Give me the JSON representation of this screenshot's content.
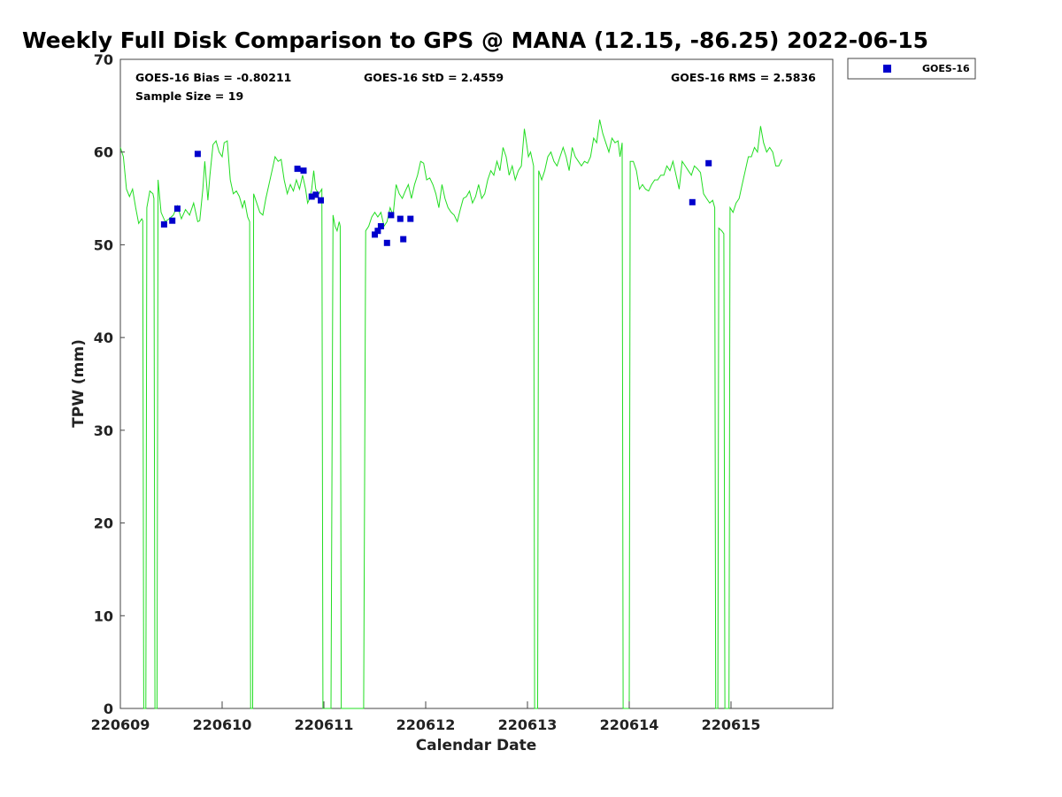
{
  "colors": {
    "gps_line": "#22dd22",
    "goes_marker": "#0000cc"
  },
  "chart_data": {
    "type": "scatter",
    "title": "Weekly Full Disk Comparison to GPS @ MANA (12.15, -86.25) 2022-06-15",
    "xlabel": "Calendar Date",
    "ylabel": "TPW (mm)",
    "xlim": [
      "220609",
      "220616"
    ],
    "ylim": [
      0,
      70
    ],
    "x_ticks": [
      "220609",
      "220610",
      "220611",
      "220612",
      "220613",
      "220614",
      "220615"
    ],
    "y_ticks": [
      "0",
      "10",
      "20",
      "30",
      "40",
      "50",
      "60",
      "70"
    ],
    "grid": false,
    "legend_position": "top-right, outside plot",
    "stats": {
      "bias": "GOES-16 Bias = -0.80211",
      "std": "GOES-16 StD = 2.4559",
      "rms": "GOES-16 RMS = 2.5836",
      "sample": "Sample Size = 19"
    },
    "series": [
      {
        "name": "GOES-16",
        "type": "scatter",
        "points": [
          [
            0.43,
            52.2
          ],
          [
            0.51,
            52.6
          ],
          [
            0.56,
            53.9
          ],
          [
            0.76,
            59.8
          ],
          [
            1.74,
            58.2
          ],
          [
            1.8,
            58.0
          ],
          [
            1.88,
            55.2
          ],
          [
            1.92,
            55.4
          ],
          [
            1.97,
            54.8
          ],
          [
            2.5,
            51.1
          ],
          [
            2.53,
            51.5
          ],
          [
            2.56,
            52.0
          ],
          [
            2.62,
            50.2
          ],
          [
            2.66,
            53.2
          ],
          [
            2.75,
            52.8
          ],
          [
            2.78,
            50.6
          ],
          [
            2.85,
            52.8
          ],
          [
            5.62,
            54.6
          ],
          [
            5.78,
            58.8
          ]
        ]
      },
      {
        "type": "line",
        "points": [
          [
            0.0,
            60.5
          ],
          [
            0.03,
            59.5
          ],
          [
            0.06,
            56.0
          ],
          [
            0.09,
            55.2
          ],
          [
            0.12,
            56.0
          ],
          [
            0.15,
            54.0
          ],
          [
            0.18,
            52.3
          ],
          [
            0.21,
            52.8
          ],
          [
            0.22,
            52.6
          ],
          [
            0.23,
            0
          ],
          [
            0.25,
            0
          ],
          [
            0.26,
            54.0
          ],
          [
            0.29,
            55.8
          ],
          [
            0.32,
            55.5
          ],
          [
            0.33,
            55.0
          ],
          [
            0.34,
            0
          ],
          [
            0.36,
            0
          ],
          [
            0.37,
            57.0
          ],
          [
            0.4,
            53.5
          ],
          [
            0.44,
            52.5
          ],
          [
            0.48,
            52.8
          ],
          [
            0.52,
            53.2
          ],
          [
            0.56,
            54.2
          ],
          [
            0.6,
            52.8
          ],
          [
            0.64,
            53.8
          ],
          [
            0.68,
            53.2
          ],
          [
            0.72,
            54.5
          ],
          [
            0.76,
            52.5
          ],
          [
            0.78,
            52.6
          ],
          [
            0.81,
            56.0
          ],
          [
            0.83,
            59.0
          ],
          [
            0.86,
            54.8
          ],
          [
            0.88,
            57.5
          ],
          [
            0.91,
            60.8
          ],
          [
            0.94,
            61.2
          ],
          [
            0.97,
            60.0
          ],
          [
            1.0,
            59.5
          ],
          [
            1.02,
            61.0
          ],
          [
            1.05,
            61.2
          ],
          [
            1.08,
            57.0
          ],
          [
            1.11,
            55.5
          ],
          [
            1.14,
            55.8
          ],
          [
            1.17,
            55.2
          ],
          [
            1.2,
            54.0
          ],
          [
            1.22,
            54.8
          ],
          [
            1.25,
            53.0
          ],
          [
            1.27,
            52.5
          ],
          [
            1.28,
            0
          ],
          [
            1.3,
            0
          ],
          [
            1.31,
            55.5
          ],
          [
            1.34,
            54.5
          ],
          [
            1.37,
            53.5
          ],
          [
            1.4,
            53.2
          ],
          [
            1.43,
            55.0
          ],
          [
            1.46,
            56.5
          ],
          [
            1.49,
            58.0
          ],
          [
            1.52,
            59.5
          ],
          [
            1.55,
            59.0
          ],
          [
            1.58,
            59.2
          ],
          [
            1.61,
            57.0
          ],
          [
            1.64,
            55.5
          ],
          [
            1.67,
            56.5
          ],
          [
            1.7,
            55.8
          ],
          [
            1.73,
            57.0
          ],
          [
            1.76,
            56.0
          ],
          [
            1.79,
            57.5
          ],
          [
            1.82,
            56.0
          ],
          [
            1.84,
            54.5
          ],
          [
            1.86,
            55.0
          ],
          [
            1.88,
            56.0
          ],
          [
            1.9,
            58.0
          ],
          [
            1.92,
            56.0
          ],
          [
            1.95,
            55.5
          ],
          [
            1.98,
            56.0
          ],
          [
            1.99,
            0
          ],
          [
            2.07,
            0
          ],
          [
            2.09,
            53.2
          ],
          [
            2.11,
            52.0
          ],
          [
            2.13,
            51.5
          ],
          [
            2.15,
            52.5
          ],
          [
            2.16,
            52.0
          ],
          [
            2.17,
            0
          ],
          [
            2.39,
            0
          ],
          [
            2.41,
            51.5
          ],
          [
            2.44,
            52.0
          ],
          [
            2.47,
            53.0
          ],
          [
            2.5,
            53.5
          ],
          [
            2.53,
            53.0
          ],
          [
            2.56,
            53.5
          ],
          [
            2.59,
            52.0
          ],
          [
            2.62,
            52.5
          ],
          [
            2.65,
            54.0
          ],
          [
            2.68,
            53.2
          ],
          [
            2.71,
            56.5
          ],
          [
            2.74,
            55.5
          ],
          [
            2.77,
            55.0
          ],
          [
            2.8,
            55.8
          ],
          [
            2.83,
            56.5
          ],
          [
            2.86,
            55.0
          ],
          [
            2.89,
            56.5
          ],
          [
            2.92,
            57.5
          ],
          [
            2.95,
            59.0
          ],
          [
            2.98,
            58.8
          ],
          [
            3.01,
            57.0
          ],
          [
            3.04,
            57.2
          ],
          [
            3.07,
            56.5
          ],
          [
            3.1,
            55.5
          ],
          [
            3.13,
            54.0
          ],
          [
            3.16,
            56.5
          ],
          [
            3.19,
            55.0
          ],
          [
            3.22,
            54.0
          ],
          [
            3.25,
            53.5
          ],
          [
            3.28,
            53.2
          ],
          [
            3.31,
            52.5
          ],
          [
            3.34,
            53.8
          ],
          [
            3.37,
            55.0
          ],
          [
            3.4,
            55.2
          ],
          [
            3.43,
            55.8
          ],
          [
            3.46,
            54.5
          ],
          [
            3.49,
            55.2
          ],
          [
            3.52,
            56.5
          ],
          [
            3.55,
            55.0
          ],
          [
            3.58,
            55.5
          ],
          [
            3.61,
            57.0
          ],
          [
            3.64,
            58.0
          ],
          [
            3.67,
            57.5
          ],
          [
            3.7,
            59.0
          ],
          [
            3.73,
            58.0
          ],
          [
            3.76,
            60.5
          ],
          [
            3.79,
            59.5
          ],
          [
            3.82,
            57.5
          ],
          [
            3.85,
            58.5
          ],
          [
            3.88,
            57.0
          ],
          [
            3.91,
            58.0
          ],
          [
            3.94,
            58.5
          ],
          [
            3.97,
            62.5
          ],
          [
            3.99,
            61.0
          ],
          [
            4.01,
            59.5
          ],
          [
            4.03,
            60.0
          ],
          [
            4.06,
            58.5
          ],
          [
            4.07,
            0
          ],
          [
            4.1,
            0
          ],
          [
            4.11,
            58.0
          ],
          [
            4.14,
            57.0
          ],
          [
            4.17,
            58.0
          ],
          [
            4.2,
            59.5
          ],
          [
            4.23,
            60.0
          ],
          [
            4.26,
            59.0
          ],
          [
            4.29,
            58.5
          ],
          [
            4.32,
            59.5
          ],
          [
            4.35,
            60.5
          ],
          [
            4.38,
            59.5
          ],
          [
            4.41,
            58.0
          ],
          [
            4.44,
            60.5
          ],
          [
            4.47,
            59.5
          ],
          [
            4.5,
            59.0
          ],
          [
            4.53,
            58.5
          ],
          [
            4.56,
            59.0
          ],
          [
            4.59,
            58.8
          ],
          [
            4.62,
            59.5
          ],
          [
            4.65,
            61.5
          ],
          [
            4.68,
            61.0
          ],
          [
            4.71,
            63.5
          ],
          [
            4.74,
            62.0
          ],
          [
            4.77,
            61.0
          ],
          [
            4.8,
            60.0
          ],
          [
            4.83,
            61.5
          ],
          [
            4.86,
            61.0
          ],
          [
            4.89,
            61.2
          ],
          [
            4.91,
            59.5
          ],
          [
            4.93,
            61.0
          ],
          [
            4.94,
            0
          ],
          [
            5.0,
            0
          ],
          [
            5.01,
            59.0
          ],
          [
            5.04,
            59.0
          ],
          [
            5.07,
            58.0
          ],
          [
            5.1,
            56.0
          ],
          [
            5.13,
            56.5
          ],
          [
            5.16,
            56.0
          ],
          [
            5.19,
            55.8
          ],
          [
            5.22,
            56.5
          ],
          [
            5.25,
            57.0
          ],
          [
            5.28,
            57.0
          ],
          [
            5.31,
            57.5
          ],
          [
            5.34,
            57.5
          ],
          [
            5.37,
            58.5
          ],
          [
            5.4,
            58.0
          ],
          [
            5.43,
            59.0
          ],
          [
            5.46,
            57.5
          ],
          [
            5.49,
            56.0
          ],
          [
            5.52,
            59.0
          ],
          [
            5.55,
            58.5
          ],
          [
            5.58,
            58.0
          ],
          [
            5.61,
            57.5
          ],
          [
            5.64,
            58.5
          ],
          [
            5.67,
            58.2
          ],
          [
            5.7,
            57.8
          ],
          [
            5.73,
            55.5
          ],
          [
            5.76,
            55.0
          ],
          [
            5.79,
            54.5
          ],
          [
            5.82,
            54.8
          ],
          [
            5.84,
            54.0
          ],
          [
            5.85,
            0
          ],
          [
            5.87,
            0
          ],
          [
            5.88,
            51.8
          ],
          [
            5.91,
            51.5
          ],
          [
            5.93,
            51.2
          ],
          [
            5.94,
            0
          ],
          [
            5.98,
            0
          ],
          [
            5.99,
            54.0
          ],
          [
            6.02,
            53.5
          ],
          [
            6.05,
            54.5
          ],
          [
            6.08,
            55.0
          ],
          [
            6.11,
            56.5
          ],
          [
            6.14,
            58.0
          ],
          [
            6.17,
            59.5
          ],
          [
            6.2,
            59.5
          ],
          [
            6.23,
            60.5
          ],
          [
            6.26,
            60.0
          ],
          [
            6.29,
            62.8
          ],
          [
            6.32,
            61.0
          ],
          [
            6.35,
            60.0
          ],
          [
            6.38,
            60.5
          ],
          [
            6.41,
            60.0
          ],
          [
            6.44,
            58.5
          ],
          [
            6.47,
            58.5
          ],
          [
            6.5,
            59.2
          ]
        ]
      }
    ]
  }
}
